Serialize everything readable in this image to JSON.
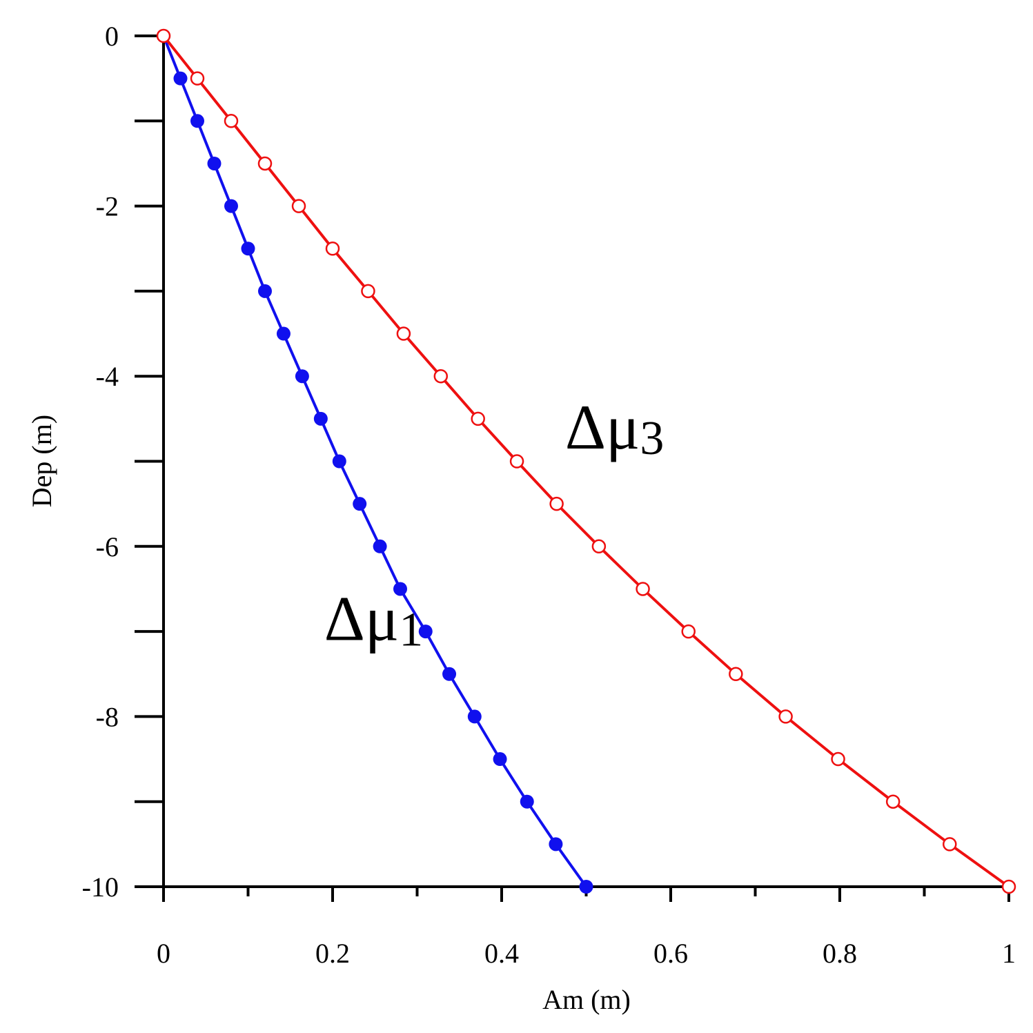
{
  "chart_data": {
    "type": "line",
    "title": "",
    "xlabel": "Am (m)",
    "ylabel": "Dep  (m)",
    "xlim": [
      0,
      1
    ],
    "ylim": [
      -10,
      0
    ],
    "x_ticks": [
      "0",
      "0.2",
      "0.4",
      "0.6",
      "0.8",
      "1"
    ],
    "y_ticks": [
      "0",
      "-2",
      "-4",
      "-6",
      "-8",
      "-10"
    ],
    "grid": false,
    "legend": "none",
    "series": [
      {
        "color": "#1010ee",
        "marker": "filled-circle",
        "points": [
          {
            "x": 0.0,
            "y": 0.0
          },
          {
            "x": 0.02,
            "y": -0.5
          },
          {
            "x": 0.04,
            "y": -1.0
          },
          {
            "x": 0.06,
            "y": -1.5
          },
          {
            "x": 0.08,
            "y": -2.0
          },
          {
            "x": 0.1,
            "y": -2.5
          },
          {
            "x": 0.12,
            "y": -3.0
          },
          {
            "x": 0.142,
            "y": -3.5
          },
          {
            "x": 0.164,
            "y": -4.0
          },
          {
            "x": 0.186,
            "y": -4.5
          },
          {
            "x": 0.208,
            "y": -5.0
          },
          {
            "x": 0.232,
            "y": -5.5
          },
          {
            "x": 0.256,
            "y": -6.0
          },
          {
            "x": 0.28,
            "y": -6.5
          },
          {
            "x": 0.31,
            "y": -7.0
          },
          {
            "x": 0.338,
            "y": -7.5
          },
          {
            "x": 0.368,
            "y": -8.0
          },
          {
            "x": 0.398,
            "y": -8.5
          },
          {
            "x": 0.43,
            "y": -9.0
          },
          {
            "x": 0.464,
            "y": -9.5
          },
          {
            "x": 0.5,
            "y": -10.0
          }
        ]
      },
      {
        "color": "#ee1010",
        "marker": "open-circle",
        "points": [
          {
            "x": 0.0,
            "y": 0.0
          },
          {
            "x": 0.04,
            "y": -0.5
          },
          {
            "x": 0.08,
            "y": -1.0
          },
          {
            "x": 0.12,
            "y": -1.5
          },
          {
            "x": 0.16,
            "y": -2.0
          },
          {
            "x": 0.2,
            "y": -2.5
          },
          {
            "x": 0.242,
            "y": -3.0
          },
          {
            "x": 0.284,
            "y": -3.5
          },
          {
            "x": 0.328,
            "y": -4.0
          },
          {
            "x": 0.372,
            "y": -4.5
          },
          {
            "x": 0.418,
            "y": -5.0
          },
          {
            "x": 0.465,
            "y": -5.5
          },
          {
            "x": 0.515,
            "y": -6.0
          },
          {
            "x": 0.567,
            "y": -6.5
          },
          {
            "x": 0.621,
            "y": -7.0
          },
          {
            "x": 0.677,
            "y": -7.5
          },
          {
            "x": 0.736,
            "y": -8.0
          },
          {
            "x": 0.798,
            "y": -8.5
          },
          {
            "x": 0.863,
            "y": -9.0
          },
          {
            "x": 0.93,
            "y": -9.5
          },
          {
            "x": 1.0,
            "y": -10.0
          }
        ]
      }
    ],
    "annotations": [
      {
        "base": "Δμ",
        "sub": "1",
        "x": 0.19,
        "y": -7.1,
        "series": 0
      },
      {
        "base": "Δμ",
        "sub": "3",
        "x": 0.475,
        "y": -4.85,
        "series": 1
      }
    ]
  }
}
